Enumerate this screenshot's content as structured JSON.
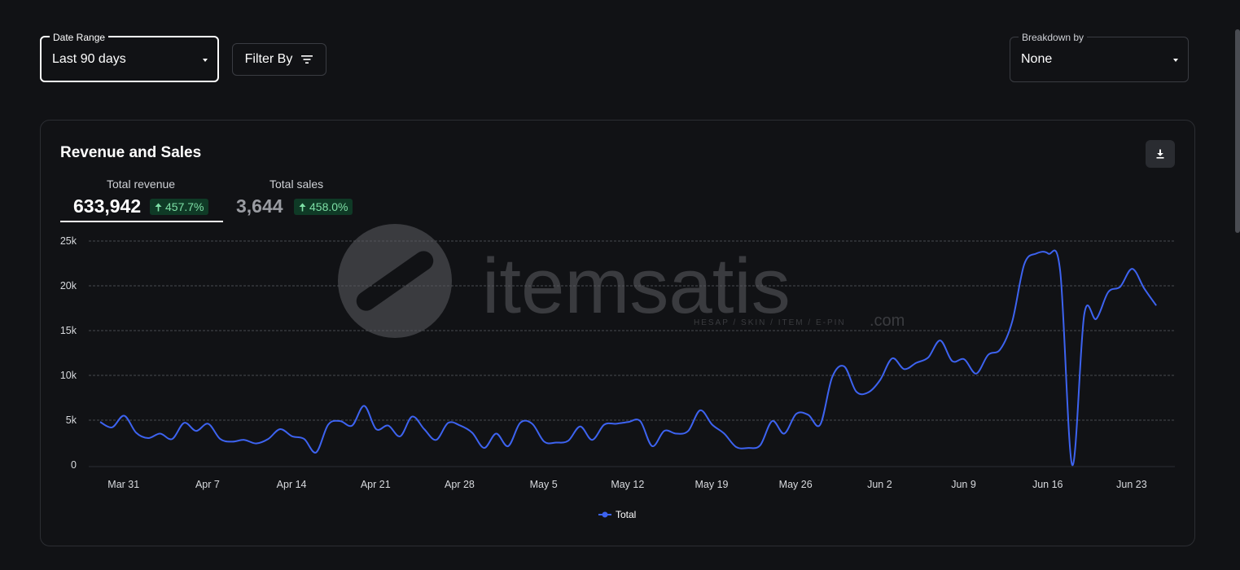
{
  "filters": {
    "date_range": {
      "label": "Date Range",
      "value": "Last 90 days"
    },
    "filter_by": {
      "label": "Filter By"
    },
    "breakdown": {
      "label": "Breakdown by",
      "value": "None"
    }
  },
  "card": {
    "title": "Revenue and Sales",
    "download_icon": "download-icon",
    "metrics": [
      {
        "label": "Total revenue",
        "value": "633,942",
        "change": "457.7%",
        "selected": true
      },
      {
        "label": "Total sales",
        "value": "3,644",
        "change": "458.0%",
        "selected": false
      }
    ]
  },
  "watermark": {
    "brand": "itemsatis",
    "tagline": "HESAP / SKIN / ITEM / E-PIN",
    "suffix": ".com"
  },
  "colors": {
    "line": "#3d63f0",
    "accent_badge_bg": "#0f3a26",
    "accent_badge_text": "#7ee0a6",
    "background": "#111215"
  },
  "chart_data": {
    "type": "line",
    "ylim": [
      0,
      25000
    ],
    "y_ticks": [
      "0",
      "5k",
      "10k",
      "15k",
      "20k",
      "25k"
    ],
    "x_tick_labels": [
      "Mar 31",
      "Apr 7",
      "Apr 14",
      "Apr 21",
      "Apr 28",
      "May 5",
      "May 12",
      "May 19",
      "May 26",
      "Jun 2",
      "Jun 9",
      "Jun 16",
      "Jun 23"
    ],
    "x_start": "Mar 30",
    "grid": true,
    "legend_position": "bottom-center",
    "series": [
      {
        "name": "Total",
        "values": [
          4800,
          4200,
          5500,
          3600,
          3000,
          3500,
          2900,
          4700,
          3800,
          4600,
          2900,
          2600,
          2800,
          2400,
          2900,
          4000,
          3200,
          2900,
          1400,
          4500,
          4900,
          4400,
          6600,
          4000,
          4400,
          3200,
          5400,
          4000,
          2800,
          4700,
          4400,
          3600,
          1900,
          3500,
          2100,
          4700,
          4600,
          2600,
          2500,
          2700,
          4300,
          2800,
          4500,
          4600,
          4800,
          4900,
          2100,
          3800,
          3500,
          3800,
          6100,
          4500,
          3500,
          2000,
          1900,
          2200,
          4900,
          3500,
          5700,
          5600,
          4500,
          9800,
          11000,
          8200,
          8100,
          9500,
          11900,
          10700,
          11400,
          12000,
          13900,
          11600,
          11800,
          10200,
          12300,
          12900,
          16000,
          22400,
          23600,
          23600,
          21600,
          0,
          16800,
          16300,
          19300,
          19900,
          21900,
          19700,
          17800
        ]
      }
    ]
  }
}
